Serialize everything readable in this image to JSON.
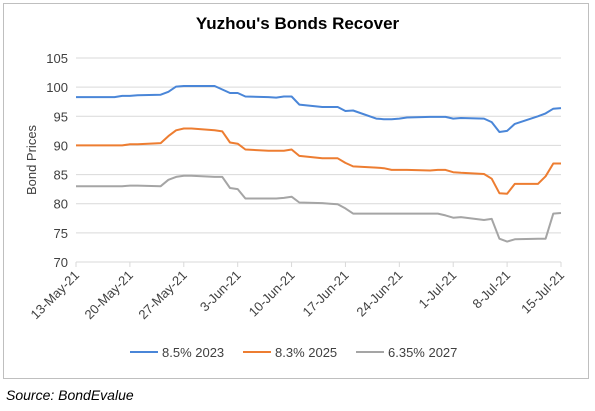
{
  "chart_data": {
    "type": "line",
    "title": "Yuzhou's Bonds Recover",
    "ylabel": "Bond Prices",
    "xlabel": "",
    "ylim": [
      70,
      105
    ],
    "y_ticks": [
      70,
      75,
      80,
      85,
      90,
      95,
      100,
      105
    ],
    "x_tick_labels": [
      "13-May-21",
      "20-May-21",
      "27-May-21",
      "3-Jun-21",
      "10-Jun-21",
      "17-Jun-21",
      "24-Jun-21",
      "1-Jul-21",
      "8-Jul-21",
      "15-Jul-21"
    ],
    "grid": "horizontal",
    "legend_position": "bottom",
    "series": [
      {
        "name": "8.5% 2023",
        "color": "#4a86d8",
        "points": [
          [
            "2021-05-13",
            98.3
          ],
          [
            "2021-05-14",
            98.3
          ],
          [
            "2021-05-17",
            98.3
          ],
          [
            "2021-05-18",
            98.3
          ],
          [
            "2021-05-19",
            98.5
          ],
          [
            "2021-05-20",
            98.5
          ],
          [
            "2021-05-21",
            98.6
          ],
          [
            "2021-05-24",
            98.7
          ],
          [
            "2021-05-25",
            99.2
          ],
          [
            "2021-05-26",
            100.1
          ],
          [
            "2021-05-27",
            100.2
          ],
          [
            "2021-05-28",
            100.2
          ],
          [
            "2021-05-31",
            100.2
          ],
          [
            "2021-06-01",
            99.6
          ],
          [
            "2021-06-02",
            99.0
          ],
          [
            "2021-06-03",
            99.0
          ],
          [
            "2021-06-04",
            98.4
          ],
          [
            "2021-06-07",
            98.3
          ],
          [
            "2021-06-08",
            98.2
          ],
          [
            "2021-06-09",
            98.4
          ],
          [
            "2021-06-10",
            98.4
          ],
          [
            "2021-06-11",
            97.0
          ],
          [
            "2021-06-14",
            96.6
          ],
          [
            "2021-06-15",
            96.6
          ],
          [
            "2021-06-16",
            96.6
          ],
          [
            "2021-06-17",
            95.9
          ],
          [
            "2021-06-18",
            96.0
          ],
          [
            "2021-06-21",
            94.6
          ],
          [
            "2021-06-22",
            94.5
          ],
          [
            "2021-06-23",
            94.5
          ],
          [
            "2021-06-24",
            94.6
          ],
          [
            "2021-06-25",
            94.8
          ],
          [
            "2021-06-28",
            94.9
          ],
          [
            "2021-06-29",
            94.9
          ],
          [
            "2021-06-30",
            94.9
          ],
          [
            "2021-07-01",
            94.6
          ],
          [
            "2021-07-02",
            94.7
          ],
          [
            "2021-07-05",
            94.6
          ],
          [
            "2021-07-06",
            94.0
          ],
          [
            "2021-07-07",
            92.3
          ],
          [
            "2021-07-08",
            92.5
          ],
          [
            "2021-07-09",
            93.7
          ],
          [
            "2021-07-12",
            95.0
          ],
          [
            "2021-07-13",
            95.5
          ],
          [
            "2021-07-14",
            96.3
          ],
          [
            "2021-07-15",
            96.4
          ]
        ]
      },
      {
        "name": "8.3% 2025",
        "color": "#ed7d31",
        "points": [
          [
            "2021-05-13",
            90.0
          ],
          [
            "2021-05-14",
            90.0
          ],
          [
            "2021-05-17",
            90.0
          ],
          [
            "2021-05-18",
            90.0
          ],
          [
            "2021-05-19",
            90.0
          ],
          [
            "2021-05-20",
            90.2
          ],
          [
            "2021-05-21",
            90.2
          ],
          [
            "2021-05-24",
            90.4
          ],
          [
            "2021-05-25",
            91.6
          ],
          [
            "2021-05-26",
            92.6
          ],
          [
            "2021-05-27",
            92.9
          ],
          [
            "2021-05-28",
            92.9
          ],
          [
            "2021-05-31",
            92.6
          ],
          [
            "2021-06-01",
            92.4
          ],
          [
            "2021-06-02",
            90.5
          ],
          [
            "2021-06-03",
            90.3
          ],
          [
            "2021-06-04",
            89.3
          ],
          [
            "2021-06-07",
            89.1
          ],
          [
            "2021-06-08",
            89.1
          ],
          [
            "2021-06-09",
            89.1
          ],
          [
            "2021-06-10",
            89.3
          ],
          [
            "2021-06-11",
            88.2
          ],
          [
            "2021-06-14",
            87.8
          ],
          [
            "2021-06-15",
            87.8
          ],
          [
            "2021-06-16",
            87.8
          ],
          [
            "2021-06-17",
            87.0
          ],
          [
            "2021-06-18",
            86.4
          ],
          [
            "2021-06-21",
            86.2
          ],
          [
            "2021-06-22",
            86.1
          ],
          [
            "2021-06-23",
            85.8
          ],
          [
            "2021-06-24",
            85.8
          ],
          [
            "2021-06-25",
            85.8
          ],
          [
            "2021-06-28",
            85.7
          ],
          [
            "2021-06-29",
            85.8
          ],
          [
            "2021-06-30",
            85.8
          ],
          [
            "2021-07-01",
            85.4
          ],
          [
            "2021-07-02",
            85.3
          ],
          [
            "2021-07-05",
            85.1
          ],
          [
            "2021-07-06",
            84.3
          ],
          [
            "2021-07-07",
            81.8
          ],
          [
            "2021-07-08",
            81.7
          ],
          [
            "2021-07-09",
            83.4
          ],
          [
            "2021-07-12",
            83.4
          ],
          [
            "2021-07-13",
            84.7
          ],
          [
            "2021-07-14",
            86.9
          ],
          [
            "2021-07-15",
            86.9
          ]
        ]
      },
      {
        "name": "6.35% 2027",
        "color": "#a5a5a5",
        "points": [
          [
            "2021-05-13",
            83.0
          ],
          [
            "2021-05-14",
            83.0
          ],
          [
            "2021-05-17",
            83.0
          ],
          [
            "2021-05-18",
            83.0
          ],
          [
            "2021-05-19",
            83.0
          ],
          [
            "2021-05-20",
            83.1
          ],
          [
            "2021-05-21",
            83.1
          ],
          [
            "2021-05-24",
            83.0
          ],
          [
            "2021-05-25",
            84.1
          ],
          [
            "2021-05-26",
            84.6
          ],
          [
            "2021-05-27",
            84.8
          ],
          [
            "2021-05-28",
            84.8
          ],
          [
            "2021-05-31",
            84.6
          ],
          [
            "2021-06-01",
            84.6
          ],
          [
            "2021-06-02",
            82.7
          ],
          [
            "2021-06-03",
            82.5
          ],
          [
            "2021-06-04",
            80.9
          ],
          [
            "2021-06-07",
            80.9
          ],
          [
            "2021-06-08",
            80.9
          ],
          [
            "2021-06-09",
            81.0
          ],
          [
            "2021-06-10",
            81.2
          ],
          [
            "2021-06-11",
            80.2
          ],
          [
            "2021-06-14",
            80.1
          ],
          [
            "2021-06-15",
            80.0
          ],
          [
            "2021-06-16",
            79.9
          ],
          [
            "2021-06-17",
            79.2
          ],
          [
            "2021-06-18",
            78.3
          ],
          [
            "2021-06-21",
            78.3
          ],
          [
            "2021-06-22",
            78.3
          ],
          [
            "2021-06-23",
            78.3
          ],
          [
            "2021-06-24",
            78.3
          ],
          [
            "2021-06-25",
            78.3
          ],
          [
            "2021-06-28",
            78.3
          ],
          [
            "2021-06-29",
            78.3
          ],
          [
            "2021-06-30",
            78.0
          ],
          [
            "2021-07-01",
            77.6
          ],
          [
            "2021-07-02",
            77.7
          ],
          [
            "2021-07-05",
            77.2
          ],
          [
            "2021-07-06",
            77.4
          ],
          [
            "2021-07-07",
            74.0
          ],
          [
            "2021-07-08",
            73.5
          ],
          [
            "2021-07-09",
            73.9
          ],
          [
            "2021-07-12",
            74.0
          ],
          [
            "2021-07-13",
            74.0
          ],
          [
            "2021-07-14",
            78.3
          ],
          [
            "2021-07-15",
            78.4
          ]
        ]
      }
    ]
  },
  "source_note": "Source: BondEvalue"
}
